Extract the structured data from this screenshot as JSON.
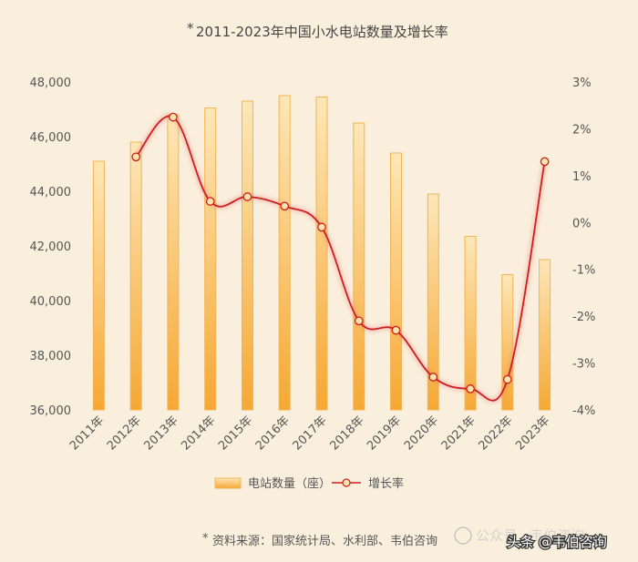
{
  "chart_data": {
    "type": "bar",
    "title": "2011-2023年中国小水电站数量及增长率",
    "title_marker": "*",
    "categories": [
      "2011年",
      "2012年",
      "2013年",
      "2014年",
      "2015年",
      "2016年",
      "2017年",
      "2018年",
      "2019年",
      "2020年",
      "2021年",
      "2022年",
      "2023年"
    ],
    "series": [
      {
        "name": "电站数量（座）",
        "type": "bar",
        "axis": "left",
        "values": [
          45100,
          45800,
          46800,
          47050,
          47300,
          47500,
          47450,
          46500,
          45400,
          43900,
          42350,
          40950,
          41500
        ]
      },
      {
        "name": "增长率",
        "type": "line",
        "axis": "right",
        "unit": "%",
        "values": [
          null,
          1.4,
          2.25,
          0.45,
          0.55,
          0.35,
          -0.1,
          -2.1,
          -2.3,
          -3.3,
          -3.55,
          -3.35,
          1.3
        ]
      }
    ],
    "y_left": {
      "min": 36000,
      "max": 48000,
      "ticks": [
        "36,000",
        "38,000",
        "40,000",
        "42,000",
        "44,000",
        "46,000",
        "48,000"
      ]
    },
    "y_right": {
      "min": -4,
      "max": 3,
      "ticks": [
        "-4%",
        "-3%",
        "-2%",
        "-1%",
        "0%",
        "1%",
        "2%",
        "3%"
      ]
    },
    "grid": false,
    "legend_position": "bottom",
    "colors": {
      "bar_top": "#fde7b8",
      "bar_bottom": "#f6a834",
      "bar_edge": "#f2b354",
      "line": "#cc1f1f",
      "marker_fill": "#fbe3ad"
    }
  },
  "footer": {
    "marker": "*",
    "source": "资料来源：国家统计局、水利部、韦伯咨询"
  },
  "watermark": {
    "faint": "公众号 · 韦伯咨询",
    "label": "头条 @韦伯咨询"
  }
}
